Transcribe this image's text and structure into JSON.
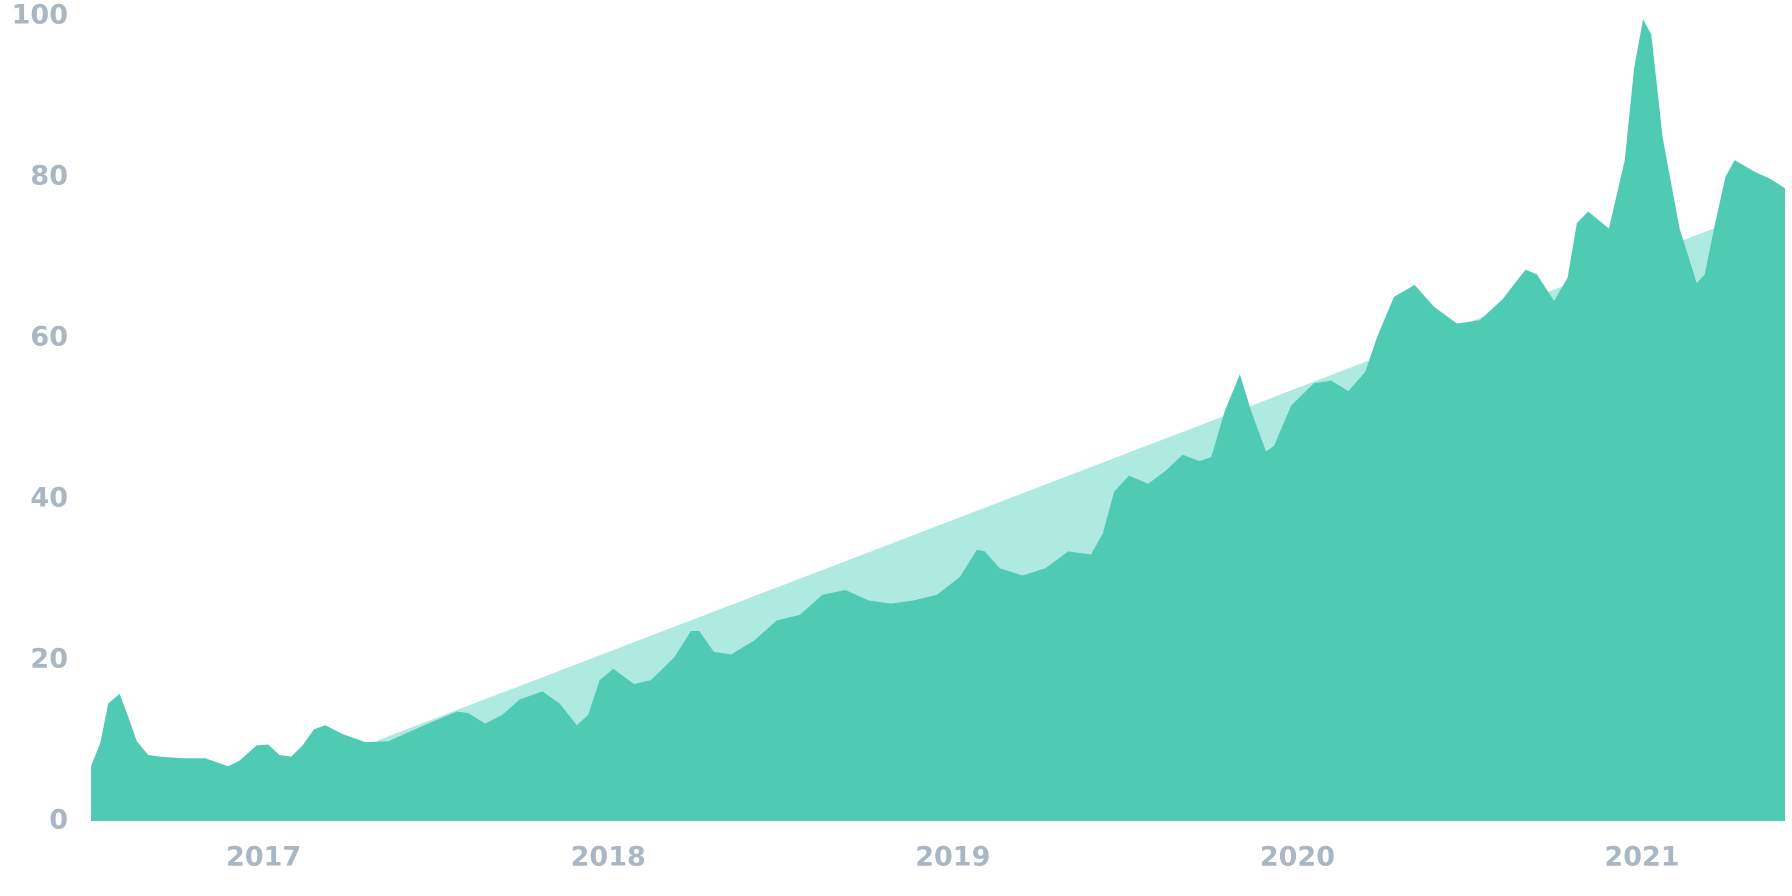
{
  "chart_data": {
    "type": "area",
    "xlim": [
      2016.499,
      2021.415
    ],
    "xticks": [
      2017,
      2018,
      2019,
      2020,
      2021
    ],
    "ylim": [
      0,
      100
    ],
    "yticks": [
      0,
      20,
      40,
      60,
      80,
      100
    ],
    "series": [
      {
        "color": "#aeeadf",
        "x": [
          2017.33,
          2021.415
        ],
        "values": [
          10,
          77
        ]
      },
      {
        "color": "#4fcbb4",
        "x": [
          2016.499,
          2016.526,
          2016.549,
          2016.582,
          2016.605,
          2016.632,
          2016.665,
          2016.698,
          2016.765,
          2016.831,
          2016.897,
          2016.93,
          2016.98,
          2017.013,
          2017.046,
          2017.08,
          2017.113,
          2017.146,
          2017.179,
          2017.229,
          2017.295,
          2017.362,
          2017.461,
          2017.561,
          2017.594,
          2017.643,
          2017.693,
          2017.743,
          2017.809,
          2017.859,
          2017.909,
          2017.942,
          2017.975,
          2018.015,
          2018.075,
          2018.124,
          2018.191,
          2018.24,
          2018.264,
          2018.307,
          2018.357,
          2018.423,
          2018.489,
          2018.556,
          2018.622,
          2018.688,
          2018.755,
          2018.821,
          2018.887,
          2018.954,
          2019.02,
          2019.07,
          2019.093,
          2019.136,
          2019.202,
          2019.269,
          2019.335,
          2019.401,
          2019.435,
          2019.468,
          2019.511,
          2019.567,
          2019.617,
          2019.667,
          2019.716,
          2019.75,
          2019.789,
          2019.833,
          2019.866,
          2019.909,
          2019.932,
          2019.982,
          2020.048,
          2020.098,
          2020.148,
          2020.197,
          2020.231,
          2020.28,
          2020.34,
          2020.396,
          2020.463,
          2020.529,
          2020.595,
          2020.662,
          2020.695,
          2020.745,
          2020.784,
          2020.811,
          2020.844,
          2020.904,
          2020.95,
          2020.977,
          2021.003,
          2021.027,
          2021.06,
          2021.109,
          2021.159,
          2021.182,
          2021.209,
          2021.242,
          2021.269,
          2021.325,
          2021.375,
          2021.415
        ],
        "values": [
          6.8,
          9.7,
          14.6,
          15.8,
          13.2,
          9.9,
          8.2,
          8.0,
          7.8,
          7.8,
          6.8,
          7.5,
          9.4,
          9.5,
          8.2,
          8.0,
          9.4,
          11.4,
          11.9,
          10.8,
          9.8,
          9.9,
          11.8,
          13.6,
          13.4,
          12.1,
          13.2,
          15.1,
          16.1,
          14.6,
          11.9,
          13.2,
          17.5,
          18.9,
          17.0,
          17.5,
          20.3,
          23.6,
          23.6,
          21.0,
          20.7,
          22.4,
          24.9,
          25.6,
          28.1,
          28.7,
          27.4,
          27.0,
          27.4,
          28.1,
          30.3,
          33.7,
          33.5,
          31.4,
          30.5,
          31.4,
          33.5,
          33.1,
          35.7,
          40.9,
          42.9,
          41.9,
          43.5,
          45.5,
          44.7,
          45.2,
          50.9,
          55.5,
          50.9,
          45.9,
          46.6,
          51.6,
          54.4,
          54.7,
          53.4,
          55.8,
          60.1,
          65.1,
          66.6,
          63.9,
          61.8,
          62.2,
          64.8,
          68.5,
          67.9,
          64.6,
          67.5,
          74.3,
          75.7,
          73.6,
          82.1,
          93.5,
          99.6,
          97.7,
          84.9,
          73.6,
          66.8,
          67.9,
          73.6,
          80.0,
          82.1,
          80.7,
          79.7,
          78.6
        ]
      }
    ]
  }
}
